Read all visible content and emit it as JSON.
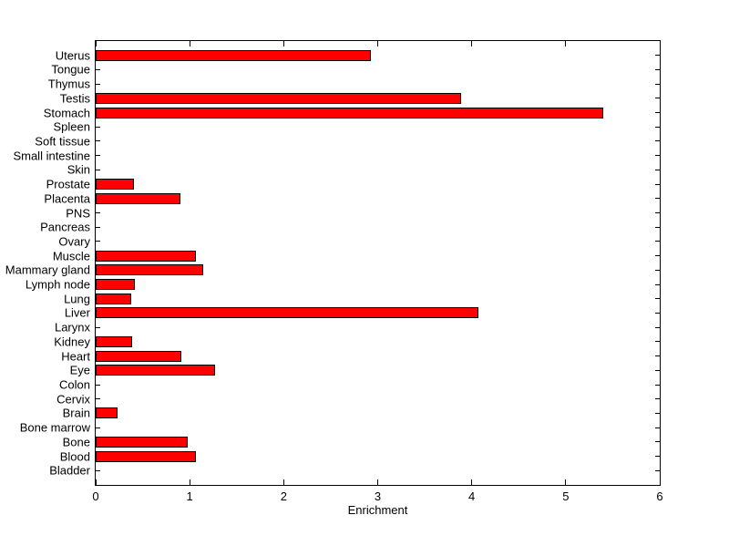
{
  "figure": {
    "background_color": "#ffffff",
    "axis_color": "#000000",
    "title": ""
  },
  "chart_data": {
    "type": "bar",
    "orientation": "horizontal",
    "title": "",
    "xlabel": "Enrichment",
    "ylabel": "",
    "xlim": [
      0,
      6
    ],
    "xticks": [
      "0",
      "1",
      "2",
      "3",
      "4",
      "5",
      "6"
    ],
    "xtick_values": [
      0,
      1,
      2,
      3,
      4,
      5,
      6
    ],
    "grid": false,
    "legend": null,
    "bar_color": "#ff0000",
    "bar_edge_color": "#000000",
    "category_order": "top-to-bottom",
    "categories": [
      "Uterus",
      "Tongue",
      "Thymus",
      "Testis",
      "Stomach",
      "Spleen",
      "Soft tissue",
      "Small intestine",
      "Skin",
      "Prostate",
      "Placenta",
      "PNS",
      "Pancreas",
      "Ovary",
      "Muscle",
      "Mammary gland",
      "Lymph node",
      "Lung",
      "Liver",
      "Larynx",
      "Kidney",
      "Heart",
      "Eye",
      "Colon",
      "Cervix",
      "Brain",
      "Bone marrow",
      "Bone",
      "Blood",
      "Bladder"
    ],
    "values": [
      2.93,
      0,
      0,
      3.89,
      5.4,
      0,
      0,
      0,
      0,
      0.41,
      0.9,
      0,
      0,
      0,
      1.07,
      1.14,
      0.42,
      0.38,
      4.07,
      0,
      0.39,
      0.91,
      1.27,
      0,
      0,
      0.23,
      0,
      0.98,
      1.07,
      0
    ]
  }
}
